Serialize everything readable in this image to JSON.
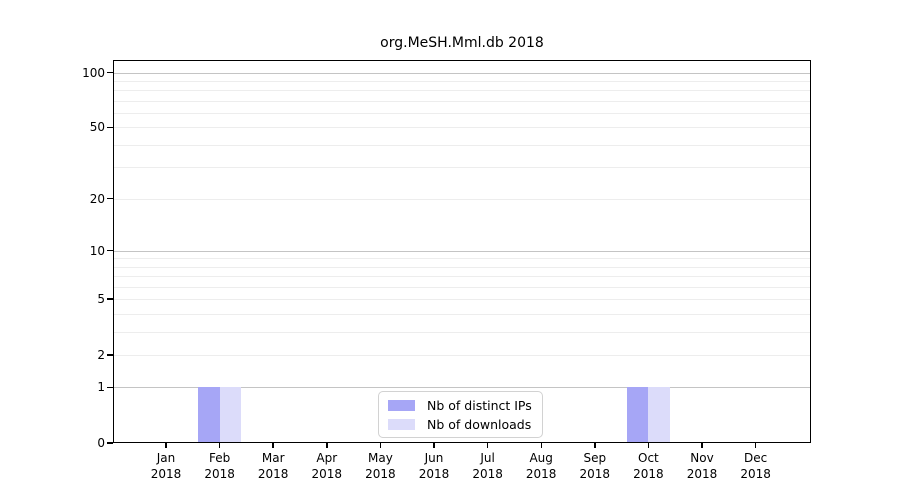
{
  "chart_data": {
    "type": "bar",
    "title": "org.MeSH.Mml.db 2018",
    "categories": [
      "Jan",
      "Feb",
      "Mar",
      "Apr",
      "May",
      "Jun",
      "Jul",
      "Aug",
      "Sep",
      "Oct",
      "Nov",
      "Dec"
    ],
    "x_year": "2018",
    "series": [
      {
        "name": "Nb of distinct IPs",
        "color": "#a6a6f6",
        "values": [
          0,
          1,
          0,
          0,
          0,
          0,
          0,
          0,
          0,
          1,
          0,
          0
        ]
      },
      {
        "name": "Nb of downloads",
        "color": "#dcdcfa",
        "values": [
          0,
          1,
          0,
          0,
          0,
          0,
          0,
          0,
          0,
          1,
          0,
          0
        ]
      }
    ],
    "yscale": "log1p",
    "ylim": [
      0,
      117
    ],
    "y_tick_values": [
      0,
      1,
      2,
      5,
      10,
      20,
      50,
      100
    ],
    "y_tick_labels": [
      "0",
      "1",
      "2",
      "5",
      "10",
      "20",
      "50",
      "100"
    ],
    "grid_major_values": [
      1,
      10,
      100
    ],
    "grid_minor_values": [
      2,
      3,
      4,
      5,
      6,
      7,
      8,
      9,
      20,
      30,
      40,
      50,
      60,
      70,
      80,
      90
    ],
    "grid": "on",
    "legend_position": "lower center inside",
    "colors": {
      "grid_major": "#c4c4c4",
      "grid_minor": "#ededed",
      "spine": "#000000",
      "text": "#000000",
      "background": "#ffffff"
    }
  }
}
